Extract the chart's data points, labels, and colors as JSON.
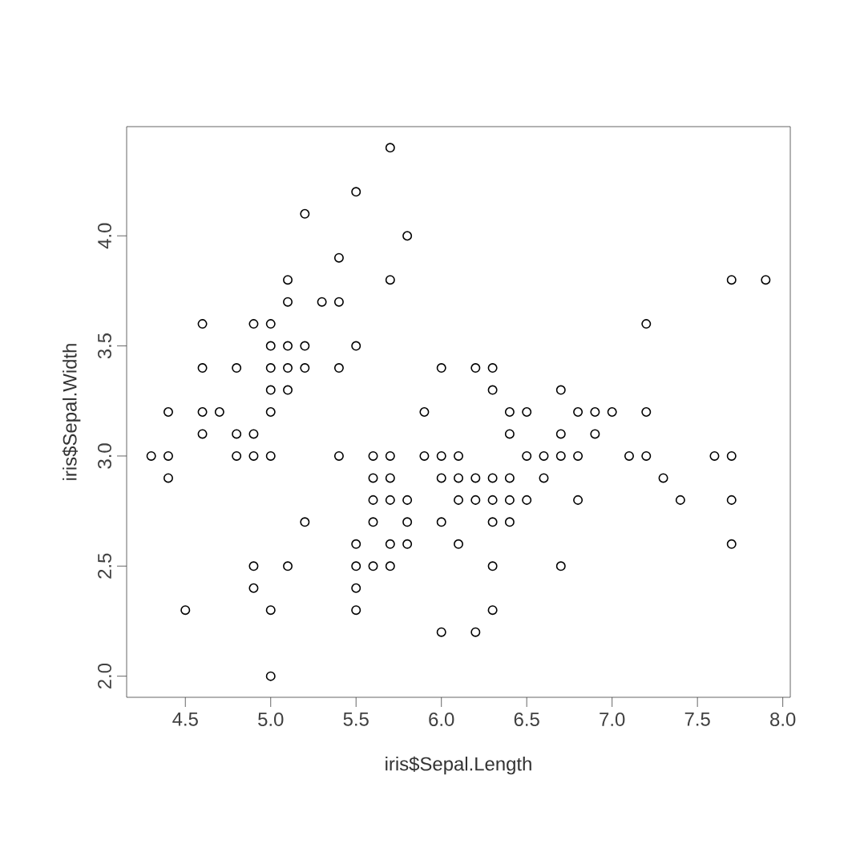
{
  "chart_data": {
    "type": "scatter",
    "xlabel": "iris$Sepal.Length",
    "ylabel": "iris$Sepal.Width",
    "x": [
      4.3,
      4.4,
      4.4,
      4.4,
      4.5,
      4.6,
      4.6,
      4.6,
      4.6,
      4.7,
      4.8,
      4.8,
      4.8,
      4.9,
      4.9,
      4.9,
      4.9,
      4.9,
      5.0,
      5.0,
      5.0,
      5.0,
      5.0,
      5.0,
      5.0,
      5.0,
      5.1,
      5.1,
      5.1,
      5.1,
      5.1,
      5.1,
      5.2,
      5.2,
      5.2,
      5.2,
      5.3,
      5.4,
      5.4,
      5.4,
      5.4,
      5.5,
      5.5,
      5.5,
      5.5,
      5.5,
      5.5,
      5.6,
      5.6,
      5.6,
      5.6,
      5.6,
      5.7,
      5.7,
      5.7,
      5.7,
      5.7,
      5.7,
      5.7,
      5.8,
      5.8,
      5.8,
      5.8,
      5.9,
      5.9,
      6.0,
      6.0,
      6.0,
      6.0,
      6.0,
      6.1,
      6.1,
      6.1,
      6.1,
      6.2,
      6.2,
      6.2,
      6.2,
      6.3,
      6.3,
      6.3,
      6.3,
      6.3,
      6.3,
      6.3,
      6.4,
      6.4,
      6.4,
      6.4,
      6.4,
      6.5,
      6.5,
      6.5,
      6.6,
      6.6,
      6.7,
      6.7,
      6.7,
      6.7,
      6.8,
      6.8,
      6.8,
      6.9,
      6.9,
      7.0,
      7.1,
      7.2,
      7.2,
      7.2,
      7.3,
      7.4,
      7.6,
      7.7,
      7.7,
      7.7,
      7.7,
      7.9
    ],
    "values": [
      3.0,
      2.9,
      3.0,
      3.2,
      2.3,
      3.1,
      3.4,
      3.6,
      3.2,
      3.2,
      3.4,
      3.0,
      3.1,
      3.0,
      3.1,
      3.6,
      2.4,
      2.5,
      3.6,
      3.4,
      3.0,
      3.2,
      3.5,
      3.3,
      2.0,
      2.3,
      3.5,
      3.8,
      3.7,
      3.3,
      3.4,
      2.5,
      3.5,
      3.4,
      4.1,
      2.7,
      3.7,
      3.9,
      3.7,
      3.4,
      3.0,
      4.2,
      3.5,
      2.3,
      2.4,
      2.5,
      2.6,
      2.9,
      3.0,
      2.5,
      2.7,
      2.8,
      4.4,
      3.8,
      2.8,
      2.6,
      3.0,
      2.9,
      2.5,
      4.0,
      2.7,
      2.6,
      2.8,
      3.0,
      3.2,
      2.2,
      2.9,
      2.7,
      3.4,
      3.0,
      2.9,
      2.8,
      3.0,
      2.6,
      2.2,
      2.9,
      2.8,
      3.4,
      3.3,
      2.5,
      2.3,
      2.9,
      2.7,
      2.8,
      3.4,
      3.2,
      2.9,
      2.7,
      2.8,
      3.1,
      2.8,
      3.0,
      3.2,
      2.9,
      3.0,
      3.1,
      3.0,
      2.5,
      3.3,
      2.8,
      3.0,
      3.2,
      3.1,
      3.2,
      3.2,
      3.0,
      3.6,
      3.2,
      3.0,
      2.9,
      2.8,
      3.0,
      3.8,
      2.6,
      2.8,
      3.0,
      3.8
    ],
    "color": "#000000",
    "marker": "circle",
    "grid": false,
    "xlim": [
      4.156,
      8.044
    ],
    "ylim": [
      1.904,
      4.496
    ],
    "xticks": [
      {
        "value": 4.5,
        "label": "4.5"
      },
      {
        "value": 5,
        "label": "5.0"
      },
      {
        "value": 5.5,
        "label": "5.5"
      },
      {
        "value": 6,
        "label": "6.0"
      },
      {
        "value": 6.5,
        "label": "6.5"
      },
      {
        "value": 7,
        "label": "7.0"
      },
      {
        "value": 7.5,
        "label": "7.5"
      },
      {
        "value": 8,
        "label": "8.0"
      }
    ],
    "yticks": [
      {
        "value": 2,
        "label": "2.0"
      },
      {
        "value": 2.5,
        "label": "2.5"
      },
      {
        "value": 3,
        "label": "3.0"
      },
      {
        "value": 3.5,
        "label": "3.5"
      },
      {
        "value": 4,
        "label": "4.0"
      }
    ]
  }
}
